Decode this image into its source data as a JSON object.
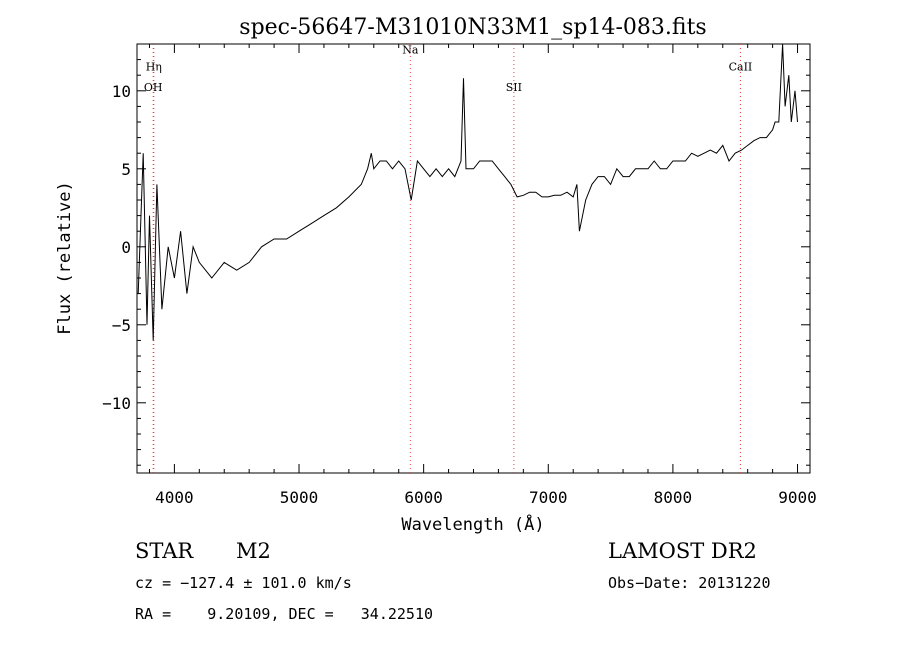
{
  "chart_data": {
    "type": "line",
    "title": "spec-56647-M31010N33M1_sp14-083.fits",
    "xlabel": "Wavelength (Å)",
    "ylabel": "Flux (relative)",
    "xlim": [
      3700,
      9100
    ],
    "ylim": [
      -14.5,
      13
    ],
    "xticks": [
      4000,
      5000,
      6000,
      7000,
      8000,
      9000
    ],
    "yticks": [
      10,
      5,
      0,
      -5,
      -10
    ],
    "ytick_labels": [
      "10",
      "5",
      "0",
      "−5",
      "−10"
    ],
    "grid": false,
    "line_markers": [
      {
        "label": "Hη",
        "wavelength": 3835,
        "label_flux": 11.3
      },
      {
        "label": "OH",
        "wavelength": 3830,
        "label_flux": 10.0
      },
      {
        "label": "Na",
        "wavelength": 5893,
        "label_flux": 12.4
      },
      {
        "label": "SII",
        "wavelength": 6724,
        "label_flux": 10.0
      },
      {
        "label": "CaII",
        "wavelength": 8542,
        "label_flux": 11.3
      }
    ],
    "series": [
      {
        "x": [
          3710,
          3750,
          3780,
          3800,
          3830,
          3860,
          3900,
          3950,
          4000,
          4050,
          4100,
          4150,
          4200,
          4300,
          4400,
          4500,
          4600,
          4700,
          4800,
          4900,
          5000,
          5100,
          5200,
          5300,
          5400,
          5500,
          5550,
          5580,
          5600,
          5650,
          5700,
          5750,
          5800,
          5850,
          5900,
          5950,
          6000,
          6050,
          6100,
          6150,
          6200,
          6250,
          6300,
          6320,
          6340,
          6400,
          6450,
          6500,
          6550,
          6600,
          6650,
          6700,
          6750,
          6800,
          6850,
          6900,
          6950,
          7000,
          7050,
          7100,
          7150,
          7200,
          7230,
          7250,
          7300,
          7350,
          7400,
          7450,
          7500,
          7550,
          7600,
          7650,
          7700,
          7750,
          7800,
          7850,
          7900,
          7950,
          8000,
          8050,
          8100,
          8150,
          8200,
          8250,
          8300,
          8350,
          8400,
          8450,
          8500,
          8550,
          8600,
          8650,
          8700,
          8750,
          8800,
          8820,
          8850,
          8880,
          8900,
          8930,
          8950,
          8980,
          9000
        ],
        "y": [
          -3,
          6,
          -5,
          2,
          -6,
          4,
          -4,
          0,
          -2,
          1,
          -3,
          0,
          -1,
          -2,
          -1,
          -1.5,
          -1,
          0,
          0.5,
          0.5,
          1,
          1.5,
          2,
          2.5,
          3.2,
          4,
          5,
          6,
          5,
          5.5,
          5.5,
          5,
          5.5,
          5,
          3,
          5.5,
          5,
          4.5,
          5,
          4.5,
          5,
          4.5,
          5.5,
          10.8,
          5,
          5,
          5.5,
          5.5,
          5.5,
          5,
          4.5,
          4,
          3.2,
          3.3,
          3.5,
          3.5,
          3.2,
          3.2,
          3.3,
          3.3,
          3.5,
          3.2,
          4,
          1,
          3,
          4,
          4.5,
          4.5,
          4,
          5,
          4.5,
          4.5,
          5,
          5,
          5,
          5.5,
          5,
          5,
          5.5,
          5.5,
          5.5,
          6,
          5.8,
          6,
          6.2,
          6,
          6.5,
          5.5,
          6,
          6.2,
          6.5,
          6.8,
          7,
          7,
          7.5,
          8,
          8,
          13,
          9,
          11,
          8,
          10,
          8
        ]
      }
    ]
  },
  "info": {
    "object": "STAR",
    "subclass": "M2",
    "survey": "LAMOST DR2",
    "velocity": "cz = −127.4 ± 101.0 km/s",
    "obs_date": "Obs−Date: 20131220",
    "coords": "RA =    9.20109, DEC =   34.22510"
  }
}
